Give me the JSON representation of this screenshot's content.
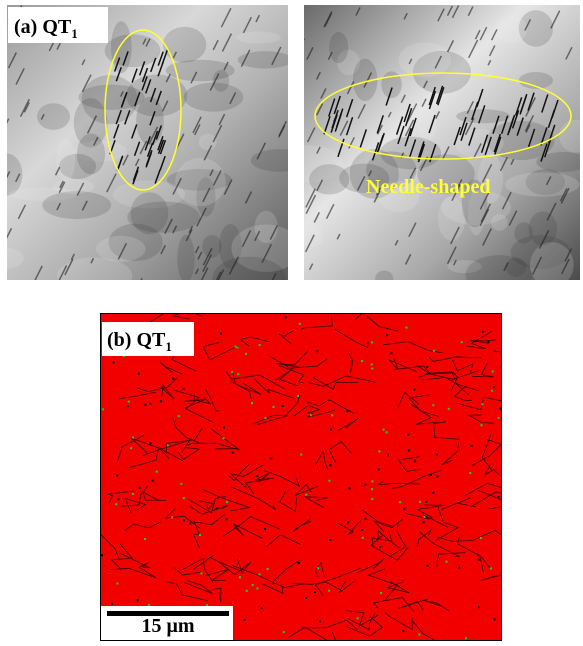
{
  "panel_a": {
    "label": "(a) QT",
    "label_sub": "1",
    "annotation": "Needle-shaped"
  },
  "panel_b": {
    "label": "(b) QT",
    "label_sub": "1",
    "scale_bar": "15 μm"
  }
}
